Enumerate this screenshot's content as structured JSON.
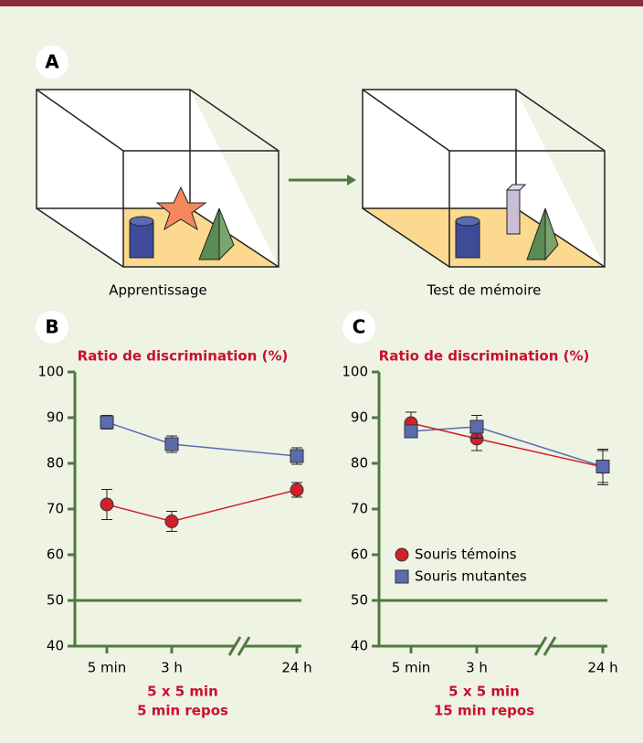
{
  "diagram": {
    "panel": "A",
    "captions": [
      "Apprentissage",
      "Test de mémoire"
    ]
  },
  "chart_data": [
    {
      "type": "line",
      "panel": "B",
      "title": "Ratio de discrimination (%)",
      "categories": [
        "5 min",
        "3 h",
        "24 h"
      ],
      "series": [
        {
          "color": "#d0202a",
          "marker": "circle",
          "values": [
            71,
            67.3,
            74.2
          ],
          "errors": [
            3.3,
            2.2,
            1.6
          ]
        },
        {
          "color": "#5b6bb0",
          "marker": "square",
          "values": [
            89,
            84.2,
            81.6
          ],
          "errors": [
            1.5,
            1.8,
            1.8
          ]
        }
      ],
      "ylim": [
        40,
        100
      ],
      "yticks": [
        40,
        50,
        60,
        70,
        80,
        90,
        100
      ],
      "reference_line": 50,
      "condition": [
        "5 x 5 min",
        "5 min repos"
      ],
      "legend": false
    },
    {
      "type": "line",
      "panel": "C",
      "title": "Ratio de discrimination (%)",
      "categories": [
        "5 min",
        "3 h",
        "24 h"
      ],
      "series": [
        {
          "name": "Souris témoins",
          "color": "#d0202a",
          "marker": "circle",
          "values": [
            88.8,
            85.4,
            79.2
          ],
          "errors": [
            2.4,
            2.6,
            3.9
          ]
        },
        {
          "name": "Souris mutantes",
          "color": "#5b6bb0",
          "marker": "square",
          "values": [
            87,
            88,
            79.3
          ],
          "errors": [
            1.2,
            2.5,
            3.5
          ]
        }
      ],
      "ylim": [
        40,
        100
      ],
      "yticks": [
        40,
        50,
        60,
        70,
        80,
        90,
        100
      ],
      "reference_line": 50,
      "condition": [
        "5 x 5 min",
        "15 min repos"
      ],
      "legend": true
    }
  ]
}
